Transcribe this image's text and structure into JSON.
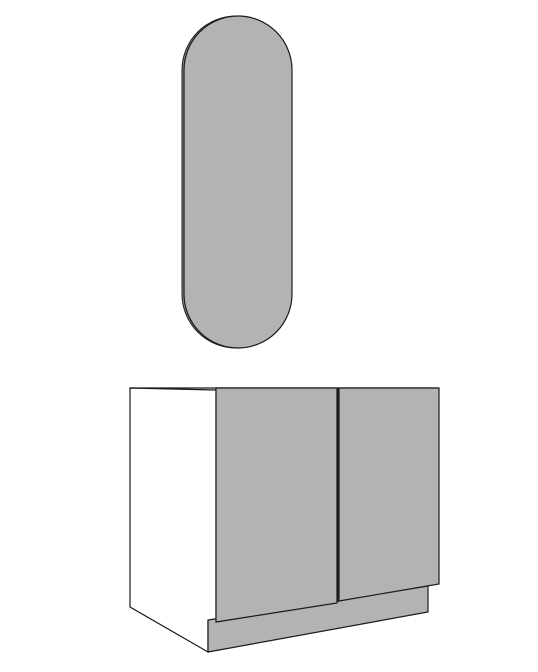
{
  "scene": {
    "background_color": "#ffffff",
    "outline_color": "#1a1a1a",
    "panel_fill_color": "#b3b3b3",
    "side_fill_color": "#ffffff",
    "objects": [
      {
        "name": "pill-shaped-mirror"
      },
      {
        "name": "two-door-vanity-cabinet"
      }
    ]
  }
}
